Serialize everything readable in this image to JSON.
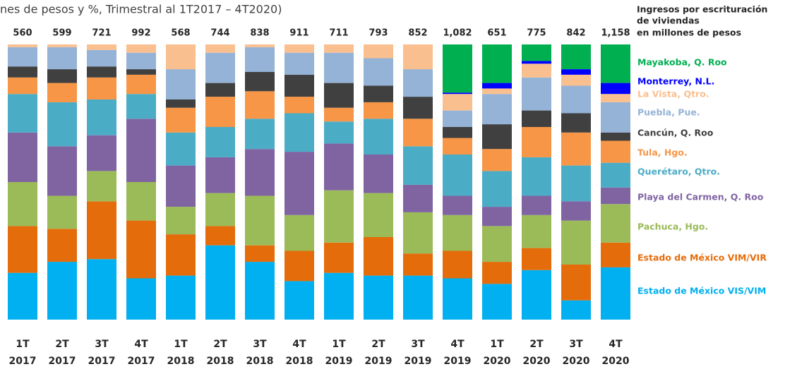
{
  "chart_data": {
    "type": "stacked_bar_100",
    "subtitle": "nes de pesos y %, Trimestral al 1T2017 – 4T2020)",
    "legend_title": [
      "Ingresos por escrituración",
      "de viviendas",
      "en millones de pesos"
    ],
    "categories": [
      {
        "quarter": "1T",
        "year": "2017"
      },
      {
        "quarter": "2T",
        "year": "2017"
      },
      {
        "quarter": "3T",
        "year": "2017"
      },
      {
        "quarter": "4T",
        "year": "2017"
      },
      {
        "quarter": "1T",
        "year": "2018"
      },
      {
        "quarter": "2T",
        "year": "2018"
      },
      {
        "quarter": "3T",
        "year": "2018"
      },
      {
        "quarter": "4T",
        "year": "2018"
      },
      {
        "quarter": "1T",
        "year": "2019"
      },
      {
        "quarter": "2T",
        "year": "2019"
      },
      {
        "quarter": "3T",
        "year": "2019"
      },
      {
        "quarter": "4T",
        "year": "2019"
      },
      {
        "quarter": "1T",
        "year": "2020"
      },
      {
        "quarter": "2T",
        "year": "2020"
      },
      {
        "quarter": "3T",
        "year": "2020"
      },
      {
        "quarter": "4T",
        "year": "2020"
      }
    ],
    "totals": {
      "values": [
        560,
        599,
        721,
        992,
        568,
        744,
        838,
        911,
        711,
        793,
        852,
        1082,
        651,
        775,
        842,
        1158
      ],
      "value_labels": [
        "560",
        "599",
        "721",
        "992",
        "568",
        "744",
        "838",
        "911",
        "711",
        "793",
        "852",
        "1,082",
        "651",
        "775",
        "842",
        "1,158"
      ]
    },
    "ylim": [
      0,
      100
    ],
    "series": [
      {
        "name": "Estado de México VIS/VIM",
        "color": "#00b0f0",
        "values": [
          17,
          21,
          22,
          15,
          16,
          27,
          21,
          14,
          17,
          16,
          16,
          15,
          13,
          18,
          7,
          19
        ]
      },
      {
        "name": "Estado de México VIM/VIR",
        "color": "#e46c0a",
        "values": [
          17,
          12,
          21,
          21,
          15,
          7,
          6,
          11,
          11,
          14,
          8,
          10,
          8,
          8,
          13,
          9
        ]
      },
      {
        "name": "Pachuca, Hgo.",
        "color": "#9bbb59",
        "values": [
          16,
          12,
          11,
          14,
          10,
          12,
          18,
          13,
          19,
          16,
          15,
          13,
          13,
          12,
          16,
          14
        ]
      },
      {
        "name": "Playa del Carmen, Q. Roo",
        "color": "#8064a2",
        "values": [
          18,
          18,
          13,
          23,
          15,
          13,
          17,
          23,
          17,
          14,
          10,
          7,
          7,
          7,
          7,
          6
        ]
      },
      {
        "name": "Querétaro, Qtro.",
        "color": "#4bacc6",
        "values": [
          14,
          16,
          13,
          9,
          12,
          11,
          11,
          14,
          8,
          13,
          14,
          15,
          13,
          14,
          13,
          9
        ]
      },
      {
        "name": "Tula, Hgo.",
        "color": "#f79646",
        "values": [
          6,
          7,
          8,
          7,
          9,
          11,
          10,
          6,
          5,
          6,
          10,
          6,
          8,
          11,
          12,
          8
        ]
      },
      {
        "name": "Cancún, Q. Roo",
        "color": "#404040",
        "values": [
          4,
          5,
          4,
          2,
          3,
          5,
          7,
          8,
          9,
          6,
          8,
          4,
          9,
          6,
          7,
          3
        ]
      },
      {
        "name": "Puebla, Pue.",
        "color": "#95b3d7",
        "values": [
          7,
          8,
          6,
          6,
          11,
          11,
          9,
          8,
          11,
          10,
          10,
          6,
          11,
          12,
          10,
          11
        ]
      },
      {
        "name": "La Vista, Qtro.",
        "color": "#fabf8f",
        "values": [
          1,
          1,
          2,
          3,
          9,
          3,
          1,
          3,
          3,
          5,
          9,
          6,
          2,
          5,
          4,
          3
        ]
      },
      {
        "name": "Monterrey, N.L.",
        "color": "#0000ff",
        "values": [
          0,
          0,
          0,
          0,
          0,
          0,
          0,
          0,
          0,
          0,
          0,
          0.5,
          2,
          1,
          2,
          4
        ]
      },
      {
        "name": "Mayakoba, Q. Roo",
        "color": "#00b050",
        "values": [
          0,
          0,
          0,
          0,
          0,
          0,
          0,
          0,
          0,
          0,
          0,
          17.5,
          14,
          6,
          9,
          14
        ]
      }
    ]
  }
}
